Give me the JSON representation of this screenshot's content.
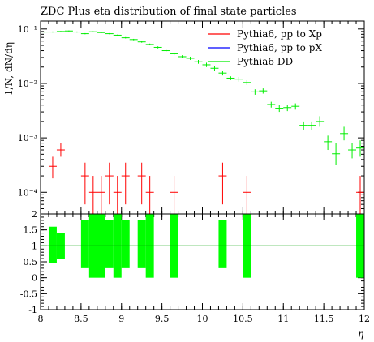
{
  "chart_data": {
    "type": "scatter",
    "title": "ZDC Plus eta distribution of final state particles",
    "xlabel": "η",
    "ylabel": "1/N, dN/dη",
    "xlim": [
      8,
      12
    ],
    "ylim_main": [
      4e-05,
      0.14
    ],
    "yscale_main": "log",
    "ylim_ratio": [
      -1,
      2
    ],
    "legend_position": "top-right",
    "x_ticks": [
      "8",
      "8.5",
      "9",
      "9.5",
      "10",
      "10.5",
      "11",
      "11.5",
      "12"
    ],
    "y_ticks_main": [
      "10⁻¹",
      "10⁻²",
      "10⁻³",
      "10⁻⁴"
    ],
    "y_ticks_ratio": [
      "2",
      "1.5",
      "1",
      "0.5",
      "0",
      "-0.5",
      "-1"
    ],
    "series": [
      {
        "name": "Pythia6, pp to Xp",
        "color": "#ff0000",
        "x": [
          8.15,
          8.25,
          8.55,
          8.65,
          8.75,
          8.85,
          8.95,
          9.05,
          9.25,
          9.35,
          9.65,
          10.25,
          10.55,
          11.95
        ],
        "y": [
          0.0003,
          0.0006,
          0.0002,
          0.0001,
          0.0001,
          0.0002,
          0.0001,
          0.0002,
          0.0002,
          0.0001,
          0.0001,
          0.0002,
          0.0001,
          0.0001
        ],
        "ylo": [
          0.00018,
          0.00045,
          6e-05,
          4e-05,
          4e-05,
          6e-05,
          4e-05,
          6e-05,
          6e-05,
          4e-05,
          4e-05,
          6e-05,
          4e-05,
          4e-05
        ],
        "yhi": [
          0.00045,
          0.0008,
          0.00035,
          0.0002,
          0.0002,
          0.00035,
          0.0002,
          0.00035,
          0.00035,
          0.0002,
          0.0002,
          0.00035,
          0.0002,
          0.0002
        ]
      },
      {
        "name": "Pythia6, pp to pX",
        "color": "#0000ff",
        "x": [],
        "y": []
      },
      {
        "name": "Pythia6 DD",
        "color": "#00ee00",
        "x": [
          8.05,
          8.15,
          8.25,
          8.35,
          8.45,
          8.55,
          8.65,
          8.75,
          8.85,
          8.95,
          9.05,
          9.15,
          9.25,
          9.35,
          9.45,
          9.55,
          9.65,
          9.75,
          9.85,
          9.95,
          10.05,
          10.15,
          10.25,
          10.35,
          10.45,
          10.55,
          10.65,
          10.75,
          10.85,
          10.95,
          11.05,
          11.15,
          11.25,
          11.35,
          11.45,
          11.55,
          11.65,
          11.75,
          11.85,
          11.95
        ],
        "y": [
          0.088,
          0.088,
          0.09,
          0.092,
          0.088,
          0.082,
          0.089,
          0.086,
          0.082,
          0.077,
          0.069,
          0.064,
          0.058,
          0.052,
          0.046,
          0.04,
          0.035,
          0.031,
          0.029,
          0.025,
          0.022,
          0.019,
          0.0155,
          0.0125,
          0.012,
          0.0104,
          0.007,
          0.0073,
          0.0041,
          0.0035,
          0.0036,
          0.0038,
          0.0017,
          0.0017,
          0.002,
          0.00085,
          0.00051,
          0.0012,
          0.0006,
          0.00065
        ],
        "ylo": [
          0.086,
          0.086,
          0.088,
          0.09,
          0.086,
          0.08,
          0.087,
          0.084,
          0.08,
          0.075,
          0.067,
          0.062,
          0.056,
          0.05,
          0.044,
          0.038,
          0.033,
          0.029,
          0.027,
          0.023,
          0.02,
          0.017,
          0.014,
          0.0115,
          0.0108,
          0.0094,
          0.0062,
          0.0065,
          0.0036,
          0.003,
          0.0031,
          0.0033,
          0.0014,
          0.0014,
          0.0016,
          0.0006,
          0.00032,
          0.0009,
          0.00042,
          0.00045
        ],
        "yhi": [
          0.09,
          0.09,
          0.092,
          0.094,
          0.09,
          0.084,
          0.091,
          0.088,
          0.084,
          0.079,
          0.071,
          0.066,
          0.06,
          0.054,
          0.048,
          0.042,
          0.037,
          0.033,
          0.031,
          0.027,
          0.024,
          0.021,
          0.017,
          0.0135,
          0.0132,
          0.0114,
          0.0078,
          0.0081,
          0.0046,
          0.004,
          0.0041,
          0.0043,
          0.002,
          0.002,
          0.0025,
          0.0011,
          0.0008,
          0.0016,
          0.0008,
          0.0009
        ]
      }
    ],
    "ratio_reference": 1,
    "ratio_bands": [
      {
        "x0": 8.1,
        "x1": 8.2,
        "lo": 0.45,
        "hi": 1.6
      },
      {
        "x0": 8.2,
        "x1": 8.3,
        "lo": 0.6,
        "hi": 1.4
      },
      {
        "x0": 8.5,
        "x1": 8.6,
        "lo": 0.3,
        "hi": 1.8
      },
      {
        "x0": 8.6,
        "x1": 8.7,
        "lo": 0,
        "hi": 2
      },
      {
        "x0": 8.7,
        "x1": 8.8,
        "lo": 0,
        "hi": 2
      },
      {
        "x0": 8.8,
        "x1": 8.9,
        "lo": 0.3,
        "hi": 1.8
      },
      {
        "x0": 8.9,
        "x1": 9.0,
        "lo": 0,
        "hi": 2
      },
      {
        "x0": 9.0,
        "x1": 9.1,
        "lo": 0.3,
        "hi": 1.8
      },
      {
        "x0": 9.2,
        "x1": 9.3,
        "lo": 0.3,
        "hi": 1.8
      },
      {
        "x0": 9.3,
        "x1": 9.4,
        "lo": 0,
        "hi": 2
      },
      {
        "x0": 9.6,
        "x1": 9.7,
        "lo": 0,
        "hi": 2
      },
      {
        "x0": 10.2,
        "x1": 10.3,
        "lo": 0.3,
        "hi": 1.8
      },
      {
        "x0": 10.5,
        "x1": 10.6,
        "lo": 0,
        "hi": 2
      },
      {
        "x0": 11.9,
        "x1": 12.0,
        "lo": 0,
        "hi": 2
      }
    ]
  }
}
